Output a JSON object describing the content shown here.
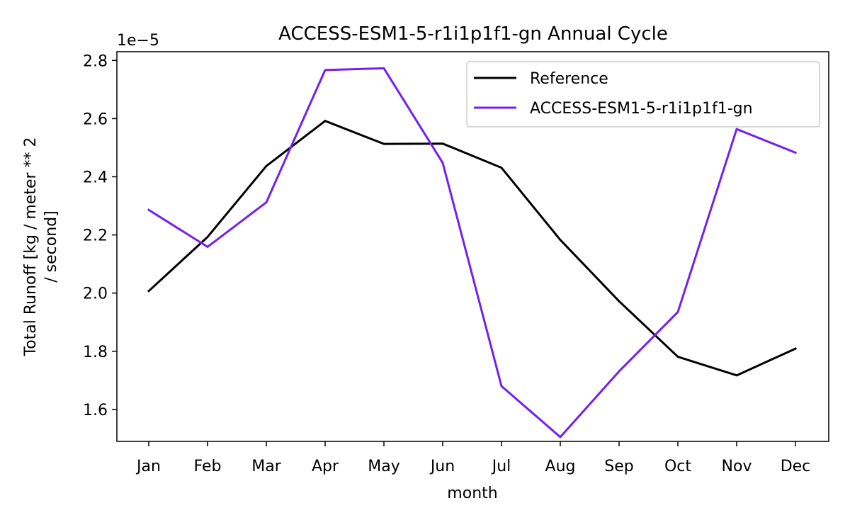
{
  "chart_data": {
    "type": "line",
    "title": "ACCESS-ESM1-5-r1i1p1f1-gn Annual Cycle",
    "xlabel": "month",
    "ylabel_line1": "Total Runoff [kg / meter ** 2",
    "ylabel_line2": "/ second]",
    "y_offset_label": "1e−5",
    "categories": [
      "Jan",
      "Feb",
      "Mar",
      "Apr",
      "May",
      "Jun",
      "Jul",
      "Aug",
      "Sep",
      "Oct",
      "Nov",
      "Dec"
    ],
    "y_ticks": [
      1.6,
      1.8,
      2.0,
      2.2,
      2.4,
      2.6,
      2.8
    ],
    "y_tick_labels": [
      "1.6",
      "1.8",
      "2.0",
      "2.2",
      "2.4",
      "2.6",
      "2.8"
    ],
    "ylim": [
      1.49,
      2.83
    ],
    "y_scale_factor": "1e-5",
    "grid": false,
    "legend_position": "top-right",
    "series": [
      {
        "name": "Reference",
        "color": "#000000",
        "values": [
          2.007,
          2.193,
          2.437,
          2.592,
          2.513,
          2.514,
          2.431,
          2.183,
          1.972,
          1.781,
          1.717,
          1.809
        ]
      },
      {
        "name": "ACCESS-ESM1-5-r1i1p1f1-gn",
        "color": "#7320f0",
        "values": [
          2.286,
          2.159,
          2.312,
          2.767,
          2.773,
          2.448,
          1.68,
          1.505,
          1.731,
          1.935,
          2.564,
          2.483
        ]
      }
    ]
  }
}
